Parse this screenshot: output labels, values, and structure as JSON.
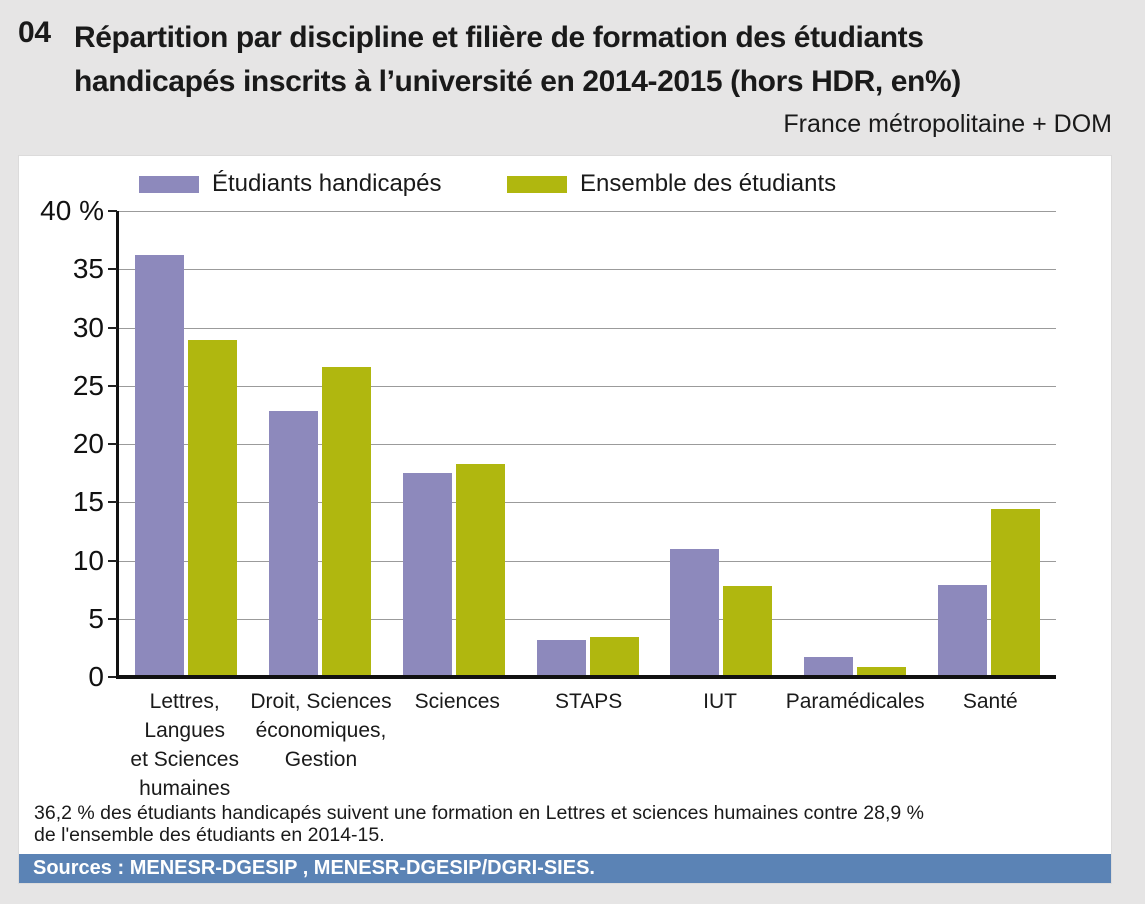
{
  "page": {
    "figure_number": "04",
    "title_line1": "Répartition par discipline et filière de formation des étudiants",
    "title_line2": "handicapés inscrits à l’université en 2014-2015 (hors HDR, en%)",
    "subtitle": "France métropolitaine + DOM",
    "note_line1": "36,2 % des étudiants handicapés suivent une formation en Lettres et sciences humaines contre 28,9 %",
    "note_line2": "de l'ensemble des étudiants en 2014-15.",
    "sources": "Sources : MENESR-DGESIP , MENESR-DGESIP/DGRI-SIES."
  },
  "colors": {
    "page_background": "#e6e5e5",
    "panel_background": "#ffffff",
    "series_handicapes": "#8d89bc",
    "series_ensemble": "#b0b70f",
    "sources_bar": "#5b83b5",
    "gridline": "#9b9b9b",
    "axis": "#111111"
  },
  "chart_data": {
    "type": "bar",
    "title": "Répartition par discipline et filière de formation des étudiants handicapés inscrits à l’université en 2014-2015 (hors HDR, en%)",
    "scope": "France métropolitaine + DOM",
    "unit": "%",
    "categories": [
      "Lettres, Langues et Sciences humaines",
      "Droit, Sciences économiques, Gestion",
      "Sciences",
      "STAPS",
      "IUT",
      "Paramédicales",
      "Santé"
    ],
    "category_label_lines": [
      [
        "Lettres,",
        "Langues",
        "et Sciences",
        "humaines"
      ],
      [
        "Droit, Sciences",
        "économiques,",
        "Gestion"
      ],
      [
        "Sciences"
      ],
      [
        "STAPS"
      ],
      [
        "IUT"
      ],
      [
        "Paramédicales"
      ],
      [
        "Santé"
      ]
    ],
    "series": [
      {
        "name": "Étudiants handicapés",
        "color": "#8d89bc",
        "values": [
          36.2,
          22.8,
          17.5,
          3.2,
          11.0,
          1.7,
          7.9
        ]
      },
      {
        "name": "Ensemble des étudiants",
        "color": "#b0b70f",
        "values": [
          28.9,
          26.6,
          18.3,
          3.4,
          7.8,
          0.9,
          14.4
        ]
      }
    ],
    "ylim": [
      0,
      40
    ],
    "ytick_step": 5,
    "ytick_top_label": "40 %",
    "grid": true,
    "legend_position": "top"
  }
}
